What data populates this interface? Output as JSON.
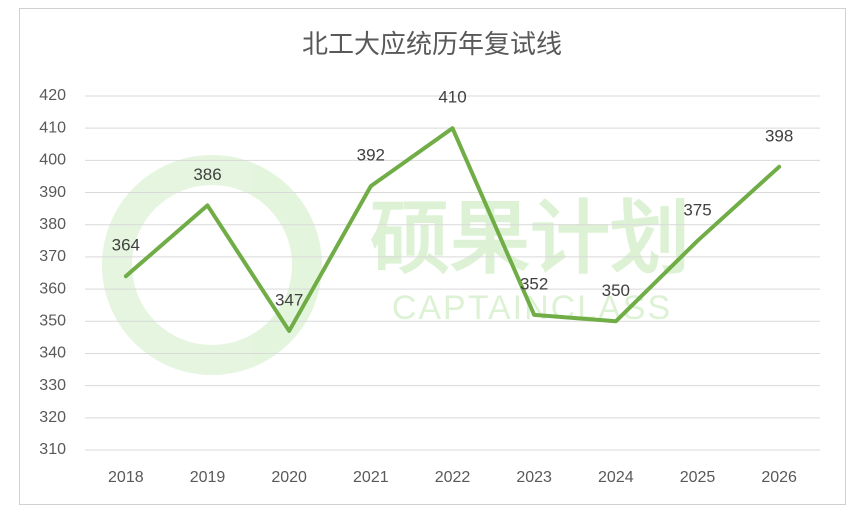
{
  "chart_data": {
    "type": "line",
    "title": "北工大应统历年复试线",
    "categories": [
      "2018",
      "2019",
      "2020",
      "2021",
      "2022",
      "2023",
      "2024",
      "2025",
      "2026"
    ],
    "values": [
      364,
      386,
      347,
      392,
      410,
      352,
      350,
      375,
      398
    ],
    "color": "#70ad47",
    "ylim": [
      310,
      420
    ],
    "yticks": [
      310,
      320,
      330,
      340,
      350,
      360,
      370,
      380,
      390,
      400,
      410,
      420
    ],
    "grid": true,
    "data_labels": true,
    "watermark": {
      "title": "硕果计划",
      "subtitle": "CAPTAINCLASS"
    }
  }
}
